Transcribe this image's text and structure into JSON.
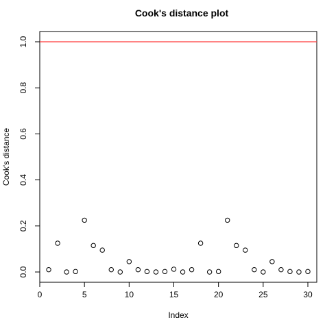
{
  "chart_data": {
    "type": "scatter",
    "title": "Cook's distance plot",
    "xlabel": "Index",
    "ylabel": "Cook's distance",
    "xlim": [
      0,
      30
    ],
    "ylim": [
      0,
      1.0
    ],
    "x_ticks": [
      0,
      5,
      10,
      15,
      20,
      25,
      30
    ],
    "y_ticks": [
      0.0,
      0.2,
      0.4,
      0.6,
      0.8,
      1.0
    ],
    "x_tick_labels": [
      "0",
      "5",
      "10",
      "15",
      "20",
      "25",
      "30"
    ],
    "y_tick_labels": [
      "0.0",
      "0.2",
      "0.4",
      "0.6",
      "0.8",
      "1.0"
    ],
    "x": [
      1,
      2,
      3,
      4,
      5,
      6,
      7,
      8,
      9,
      10,
      11,
      12,
      13,
      14,
      15,
      16,
      17,
      18,
      19,
      20,
      21,
      22,
      23,
      24,
      25,
      26,
      27,
      28,
      29,
      30
    ],
    "y": [
      0.01,
      0.125,
      0.0,
      0.002,
      0.225,
      0.115,
      0.095,
      0.01,
      0.0,
      0.045,
      0.01,
      0.002,
      0.0,
      0.002,
      0.012,
      0.0,
      0.01,
      0.125,
      0.0,
      0.002,
      0.225,
      0.115,
      0.095,
      0.01,
      0.0,
      0.045,
      0.01,
      0.002,
      0.0,
      0.002
    ],
    "reference_line": {
      "y": 1.0,
      "color": "#ff3b3b"
    },
    "marker": "open-circle",
    "grid": false
  }
}
